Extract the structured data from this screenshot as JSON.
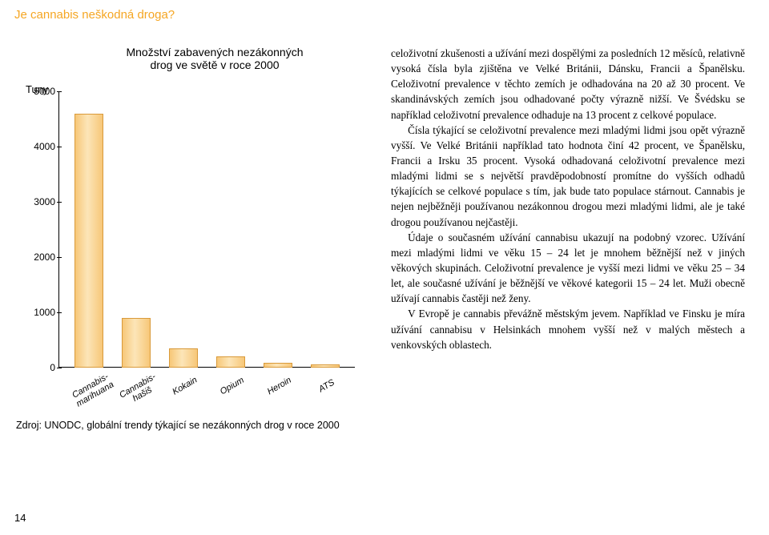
{
  "header": "Je cannabis neškodná droga?",
  "pageNumber": "14",
  "chart": {
    "title_line1": "Množství zabavených nezákonných",
    "title_line2": "drog ve světě v roce 2000",
    "y_label": "Tuny",
    "y_max": 5000,
    "y_ticks": [
      0,
      1000,
      2000,
      3000,
      4000,
      5000
    ],
    "bar_fill": "#f7c778",
    "bar_border": "#d99a3a",
    "categories": [
      {
        "label": "Cannabis-\nmarihuana",
        "value": 4600
      },
      {
        "label": "Cannabis-\nhašiš",
        "value": 900
      },
      {
        "label": "Kokain",
        "value": 350
      },
      {
        "label": "Opium",
        "value": 200
      },
      {
        "label": "Heroin",
        "value": 80
      },
      {
        "label": "ATS",
        "value": 60
      }
    ],
    "source": "Zdroj: UNODC, globální trendy týkající se nezákonných drog v roce 2000"
  },
  "body": {
    "p1": "celoživotní zkušenosti a užívání mezi dospělými za posledních 12 měsíců, relativně vysoká čísla byla zjištěna ve Velké Británii, Dánsku, Francii a Španělsku. Celoživotní prevalence v těchto zemích je odhadována na 20 až 30 procent. Ve skandinávských zemích jsou odhadované počty výrazně nižší. Ve Švédsku se například celoživotní prevalence odhaduje na 13 procent z celkové populace.",
    "p2": "Čísla týkající se celoživotní prevalence mezi mladými lidmi jsou opět výrazně vyšší. Ve Velké Británii například tato hodnota činí 42 procent, ve Španělsku, Francii a Irsku 35 procent. Vysoká odhadovaná celoživotní prevalence mezi mladými lidmi se s největší pravděpodobností promítne do vyšších odhadů týkajících se celkové populace s tím, jak bude tato populace stárnout. Cannabis je nejen nejběžněji používanou nezákonnou drogou mezi mladými lidmi, ale je také drogou používanou nejčastěji.",
    "p3": "Údaje o současném užívání cannabisu ukazují na podobný vzorec. Užívání mezi mladými lidmi ve věku 15 – 24 let je mnohem běžnější než v jiných věkových skupinách. Celoživotní prevalence je vyšší mezi lidmi ve věku 25 – 34 let, ale současné užívání je běžnější ve věkové kategorii 15 – 24 let. Muži obecně užívají cannabis častěji než ženy.",
    "p4": "V Evropě je cannabis převážně městským jevem. Například ve Finsku je míra užívání cannabisu v Helsinkách mnohem vyšší než v malých městech a venkovských oblastech."
  }
}
